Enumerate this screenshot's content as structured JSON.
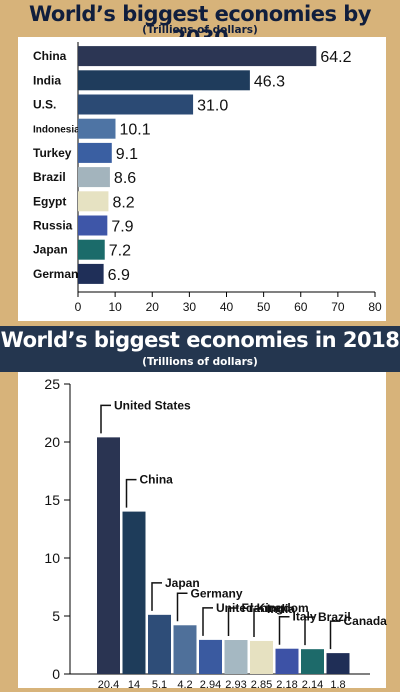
{
  "chart_data": [
    {
      "type": "bar",
      "orientation": "horizontal",
      "title": "World’s biggest economies by 2030",
      "subtitle": "(Trillions of dollars)",
      "categories": [
        "China",
        "India",
        "U.S.",
        "Indonesia",
        "Turkey",
        "Brazil",
        "Egypt",
        "Russia",
        "Japan",
        "Germany"
      ],
      "values": [
        64.2,
        46.3,
        31.0,
        10.1,
        9.1,
        8.6,
        8.2,
        7.9,
        7.2,
        6.9
      ],
      "value_labels": [
        "64.2",
        "46.3",
        "31.0",
        "10.1",
        "9.1",
        "8.6",
        "8.2",
        "7.9",
        "7.2",
        "6.9"
      ],
      "colors": [
        "#2c3654",
        "#1f3c5c",
        "#2b4a74",
        "#4e74a4",
        "#3a5fa2",
        "#a3b4bd",
        "#e6e2c2",
        "#3e56a8",
        "#1b6b6a",
        "#1f2f58"
      ],
      "xlim": [
        0,
        80
      ],
      "xticks": [
        0,
        10,
        20,
        30,
        40,
        50,
        60,
        70,
        80
      ],
      "grid": false,
      "legend": "none"
    },
    {
      "type": "bar",
      "title": "World’s biggest economies in 2018",
      "subtitle": "(Trillions of dollars)",
      "categories": [
        "United States",
        "China",
        "Japan",
        "Germany",
        "United Kingdom",
        "France",
        "India",
        "Italy",
        "Brazil",
        "Canada"
      ],
      "values": [
        20.4,
        14,
        5.1,
        4.2,
        2.94,
        2.93,
        2.85,
        2.18,
        2.14,
        1.8
      ],
      "value_labels": [
        "20.4",
        "14",
        "5.1",
        "4.2",
        "2.94",
        "2.93",
        "2.85",
        "2.18",
        "2.14",
        "1.8"
      ],
      "colors": [
        "#2a3452",
        "#1e3c5a",
        "#2e4d78",
        "#4f709a",
        "#3a5aa0",
        "#a5b8c2",
        "#e6e1c1",
        "#3d52a6",
        "#1d6a6a",
        "#1f2e56"
      ],
      "ylim": [
        0,
        25
      ],
      "yticks": [
        0,
        5,
        10,
        15,
        20,
        25
      ],
      "grid": false,
      "legend": "none"
    }
  ]
}
